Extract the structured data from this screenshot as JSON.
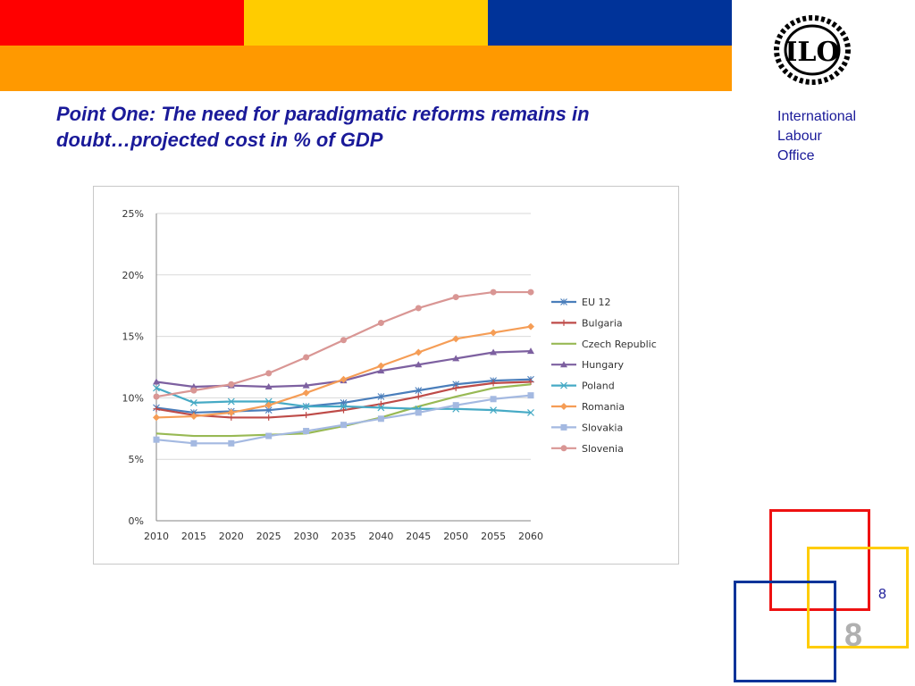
{
  "header": {
    "title_line1": "Point One: The need for paradigmatic reforms remains in",
    "title_line2": "doubt…projected cost in % of GDP"
  },
  "organization": {
    "line1": "International",
    "line2": "Labour",
    "line3": "Office",
    "logo_text": "ILO"
  },
  "page": {
    "number": "8",
    "number_large": "8"
  },
  "colors": {
    "band_red": "#ff0000",
    "band_yellow": "#ffcc00",
    "band_blue": "#003399",
    "band_orange": "#ff9900",
    "title_color": "#1a1a99"
  },
  "chart_data": {
    "type": "line",
    "title": "",
    "xlabel": "",
    "ylabel": "",
    "categories": [
      "2010",
      "2015",
      "2020",
      "2025",
      "2030",
      "2035",
      "2040",
      "2045",
      "2050",
      "2055",
      "2060"
    ],
    "yticks": [
      "0%",
      "5%",
      "10%",
      "15%",
      "20%",
      "25%"
    ],
    "ylim": [
      0,
      25
    ],
    "grid": true,
    "legend_position": "right",
    "series": [
      {
        "name": "EU 12",
        "color": "#4a7ebb",
        "marker": "star",
        "values": [
          9.2,
          8.8,
          8.9,
          9.0,
          9.3,
          9.6,
          10.1,
          10.6,
          11.1,
          11.4,
          11.5
        ]
      },
      {
        "name": "Bulgaria",
        "color": "#be4b48",
        "marker": "plus",
        "values": [
          9.1,
          8.6,
          8.4,
          8.4,
          8.6,
          9.0,
          9.5,
          10.1,
          10.8,
          11.2,
          11.3
        ]
      },
      {
        "name": "Czech Republic",
        "color": "#98b954",
        "marker": "none",
        "values": [
          7.1,
          6.9,
          6.9,
          7.0,
          7.1,
          7.7,
          8.4,
          9.3,
          10.1,
          10.8,
          11.1
        ]
      },
      {
        "name": "Hungary",
        "color": "#7d60a0",
        "marker": "triangle",
        "values": [
          11.3,
          10.9,
          11.0,
          10.9,
          11.0,
          11.4,
          12.2,
          12.7,
          13.2,
          13.7,
          13.8
        ]
      },
      {
        "name": "Poland",
        "color": "#46aac5",
        "marker": "x",
        "values": [
          10.8,
          9.6,
          9.7,
          9.7,
          9.3,
          9.3,
          9.2,
          9.1,
          9.1,
          9.0,
          8.8
        ]
      },
      {
        "name": "Romania",
        "color": "#f59d56",
        "marker": "diamond",
        "values": [
          8.4,
          8.5,
          8.8,
          9.4,
          10.4,
          11.5,
          12.6,
          13.7,
          14.8,
          15.3,
          15.8
        ]
      },
      {
        "name": "Slovakia",
        "color": "#a4b9e1",
        "marker": "square",
        "values": [
          6.6,
          6.3,
          6.3,
          6.9,
          7.3,
          7.8,
          8.3,
          8.8,
          9.4,
          9.9,
          10.2
        ]
      },
      {
        "name": "Slovenia",
        "color": "#d99694",
        "marker": "circle",
        "values": [
          10.1,
          10.6,
          11.1,
          12.0,
          13.3,
          14.7,
          16.1,
          17.3,
          18.2,
          18.6,
          18.6
        ]
      }
    ]
  }
}
